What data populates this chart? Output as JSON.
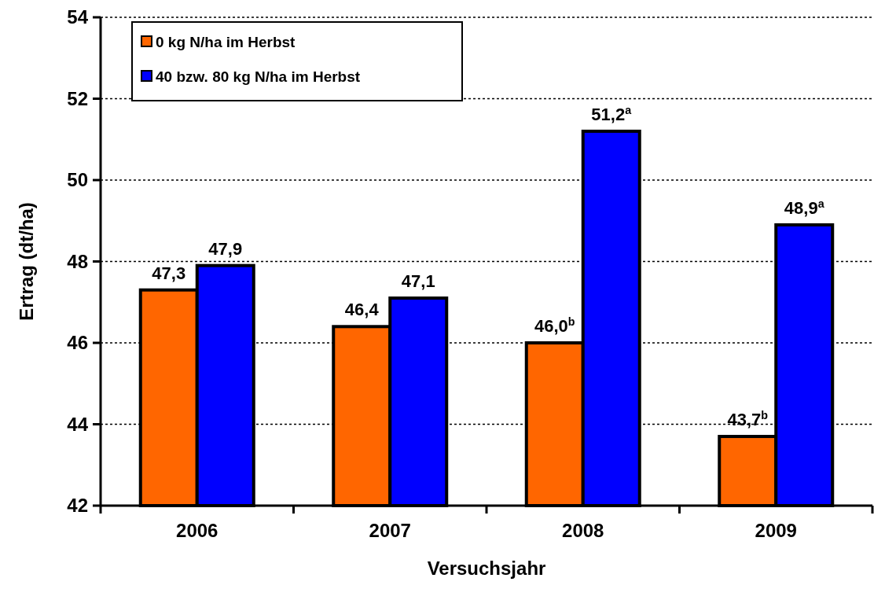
{
  "chart_data": {
    "type": "bar",
    "xlabel": "Versuchsjahr",
    "ylabel": "Ertrag (dt/ha)",
    "categories": [
      "2006",
      "2007",
      "2008",
      "2009"
    ],
    "series": [
      {
        "name": "0 kg N/ha im Herbst",
        "color": "#ff6600",
        "values": [
          47.3,
          46.4,
          46.0,
          43.7
        ],
        "value_labels": [
          "47,3",
          "46,4",
          "46,0$^{b}$",
          "43,7$^{b}$"
        ]
      },
      {
        "name": "40 bzw. 80 kg N/ha im Herbst",
        "color": "#0000ff",
        "values": [
          47.9,
          47.1,
          51.2,
          48.9
        ],
        "value_labels": [
          "47,9",
          "47,1",
          "51,2$^{a}$",
          "48,9$^{a}$"
        ]
      }
    ],
    "ylim": [
      42,
      54
    ],
    "yticks": [
      42,
      44,
      46,
      48,
      50,
      52,
      54
    ],
    "grid": "y",
    "legend": "top left"
  }
}
